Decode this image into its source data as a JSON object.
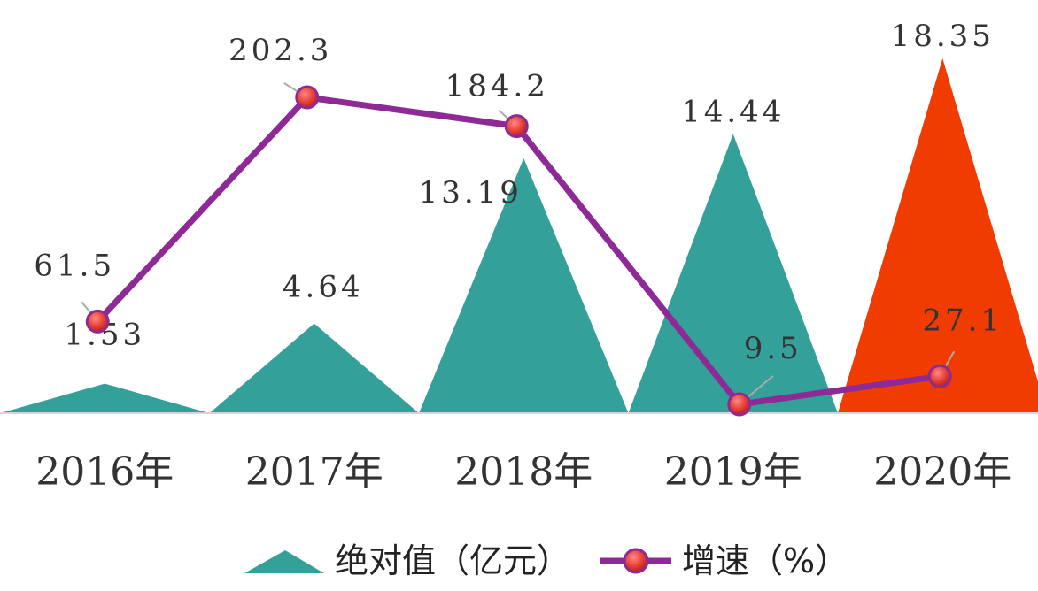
{
  "chart_data": {
    "type": "bar+line",
    "categories": [
      "2016年",
      "2017年",
      "2018年",
      "2019年",
      "2020年"
    ],
    "series": [
      {
        "name": "绝对值（亿元）",
        "kind": "triangle-bar",
        "values": [
          1.53,
          4.64,
          13.19,
          14.44,
          18.35
        ],
        "labels": [
          "1.53",
          "4.64",
          "13.19",
          "14.44",
          "18.35"
        ],
        "color": "#33A19A",
        "highlight_color": "#F03C00",
        "highlight_index": 4
      },
      {
        "name": "增速（%）",
        "kind": "line",
        "values": [
          61.5,
          202.3,
          184.2,
          9.5,
          27.1
        ],
        "labels": [
          "61.5",
          "202.3",
          "184.2",
          "9.5",
          "27.1"
        ],
        "color": "#8E2A95",
        "marker_color": "#E8453C"
      }
    ],
    "grid": false,
    "legend_position": "bottom"
  },
  "legend": {
    "bar_label": "绝对值（亿元）",
    "line_label": "增速（%）"
  }
}
